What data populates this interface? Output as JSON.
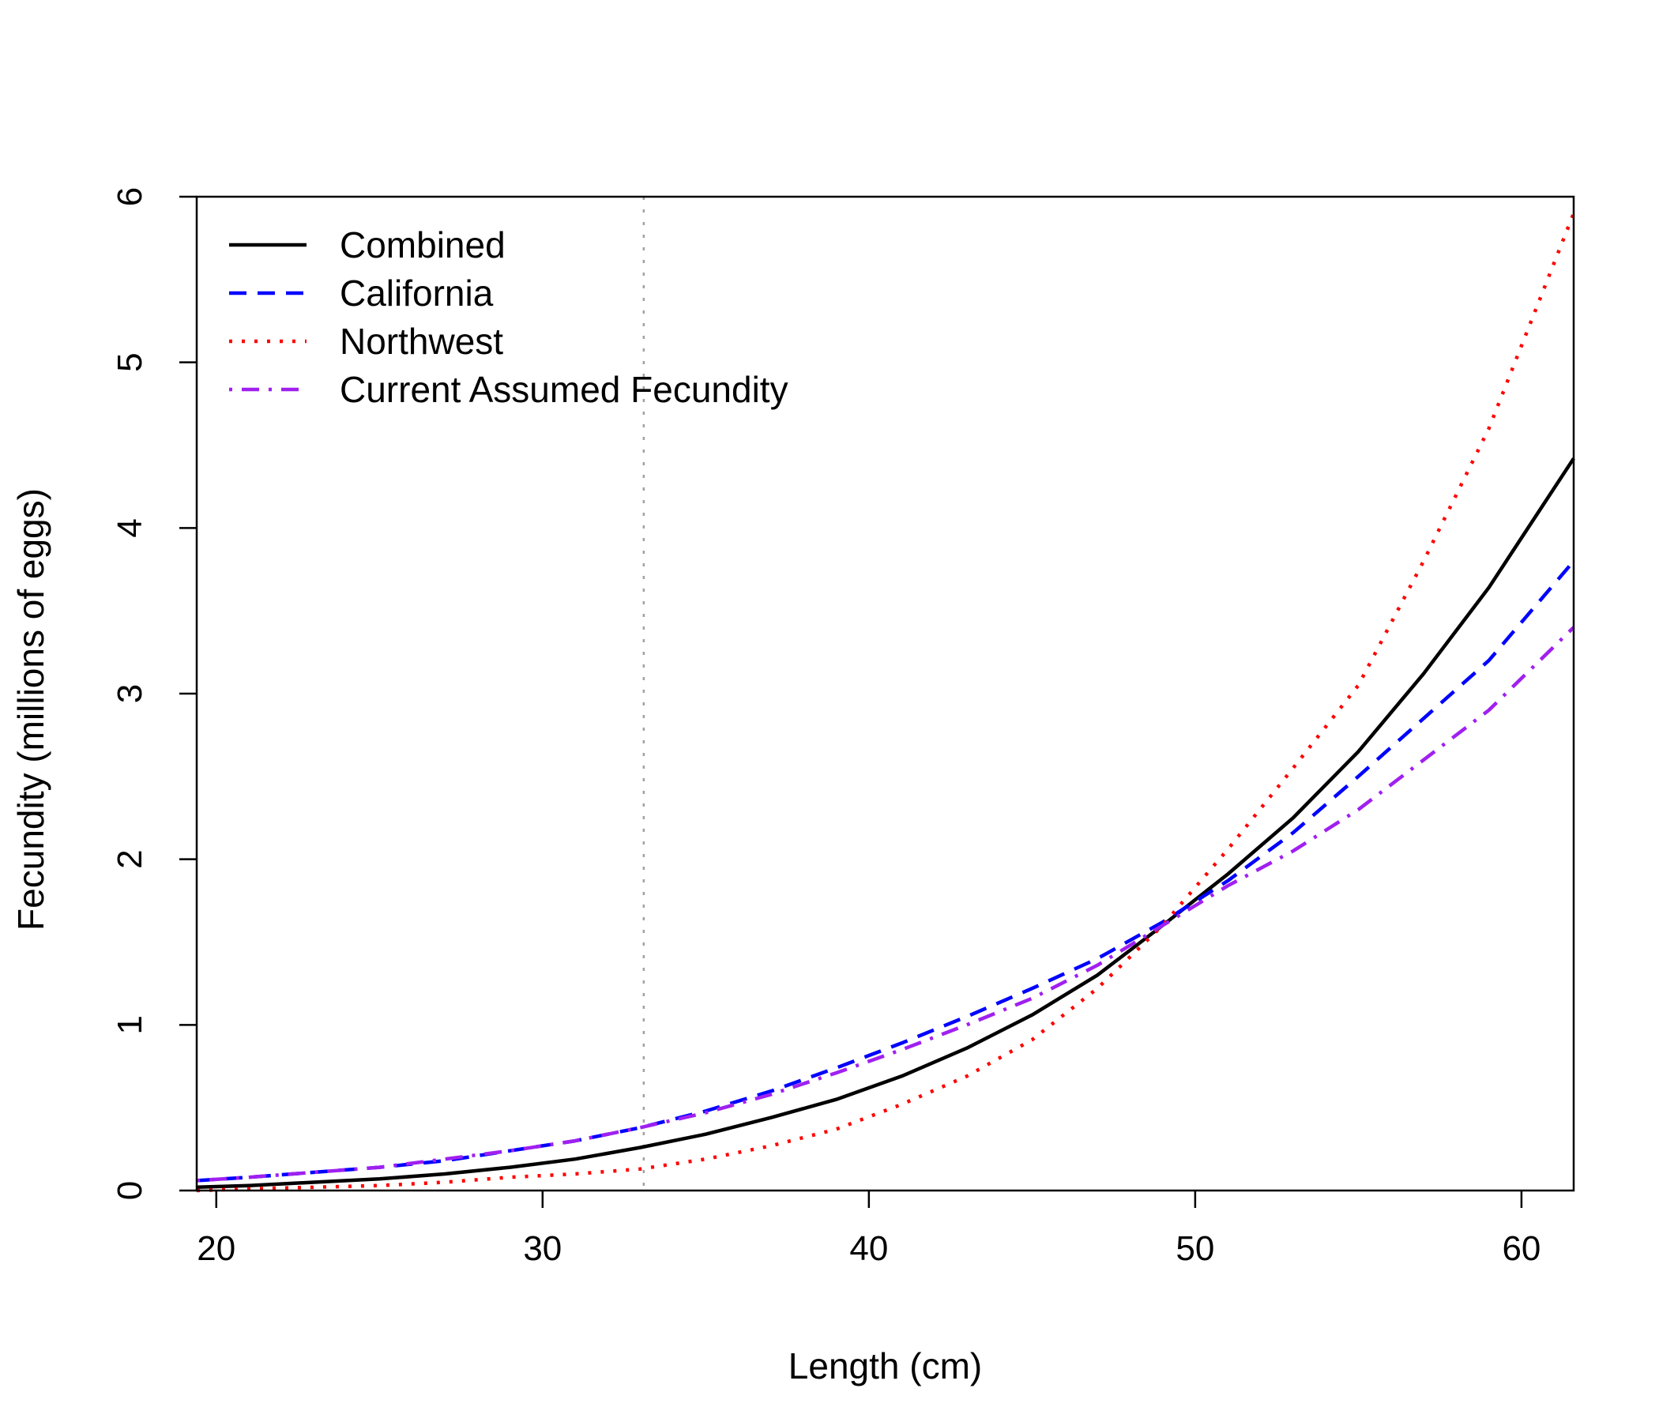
{
  "chart_data": {
    "type": "line",
    "xlabel": "Length (cm)",
    "ylabel": "Fecundity (millions of eggs)",
    "xlim": [
      19.4,
      61.6
    ],
    "ylim": [
      0,
      6
    ],
    "x_ticks": [
      "20",
      "30",
      "40",
      "50",
      "60"
    ],
    "y_ticks": [
      "0",
      "1",
      "2",
      "3",
      "4",
      "5",
      "6"
    ],
    "reference_line": {
      "x": 33.1,
      "color": "#A0A0A0",
      "style": "dotted"
    },
    "legend": {
      "position": "top-left"
    },
    "x": [
      19.4,
      21,
      23,
      25,
      27,
      29,
      31,
      33,
      35,
      37,
      39,
      41,
      43,
      45,
      47,
      49,
      51,
      53,
      55,
      57,
      59,
      61.6
    ],
    "series": [
      {
        "name": "Combined",
        "color": "#000000",
        "dash": "solid",
        "values": [
          0.02,
          0.03,
          0.05,
          0.07,
          0.1,
          0.14,
          0.19,
          0.26,
          0.34,
          0.44,
          0.55,
          0.69,
          0.86,
          1.06,
          1.3,
          1.6,
          1.91,
          2.25,
          2.65,
          3.12,
          3.64,
          4.42
        ]
      },
      {
        "name": "California",
        "color": "#0000FF",
        "dash": "dashed",
        "values": [
          0.06,
          0.08,
          0.11,
          0.14,
          0.18,
          0.24,
          0.3,
          0.38,
          0.48,
          0.6,
          0.74,
          0.89,
          1.05,
          1.22,
          1.4,
          1.62,
          1.87,
          2.16,
          2.5,
          2.85,
          3.2,
          3.8
        ]
      },
      {
        "name": "Northwest",
        "color": "#FF0000",
        "dash": "dotted",
        "values": [
          0.0,
          0.01,
          0.02,
          0.03,
          0.05,
          0.08,
          0.1,
          0.13,
          0.19,
          0.27,
          0.37,
          0.52,
          0.69,
          0.91,
          1.22,
          1.6,
          2.06,
          2.55,
          3.05,
          3.8,
          4.6,
          5.9
        ]
      },
      {
        "name": "Current Assumed Fecundity",
        "color": "#A020F0",
        "dash": "dashdot",
        "values": [
          0.06,
          0.08,
          0.11,
          0.14,
          0.19,
          0.24,
          0.3,
          0.38,
          0.47,
          0.58,
          0.71,
          0.85,
          1.0,
          1.16,
          1.36,
          1.6,
          1.84,
          2.05,
          2.3,
          2.6,
          2.9,
          3.4
        ]
      }
    ]
  }
}
